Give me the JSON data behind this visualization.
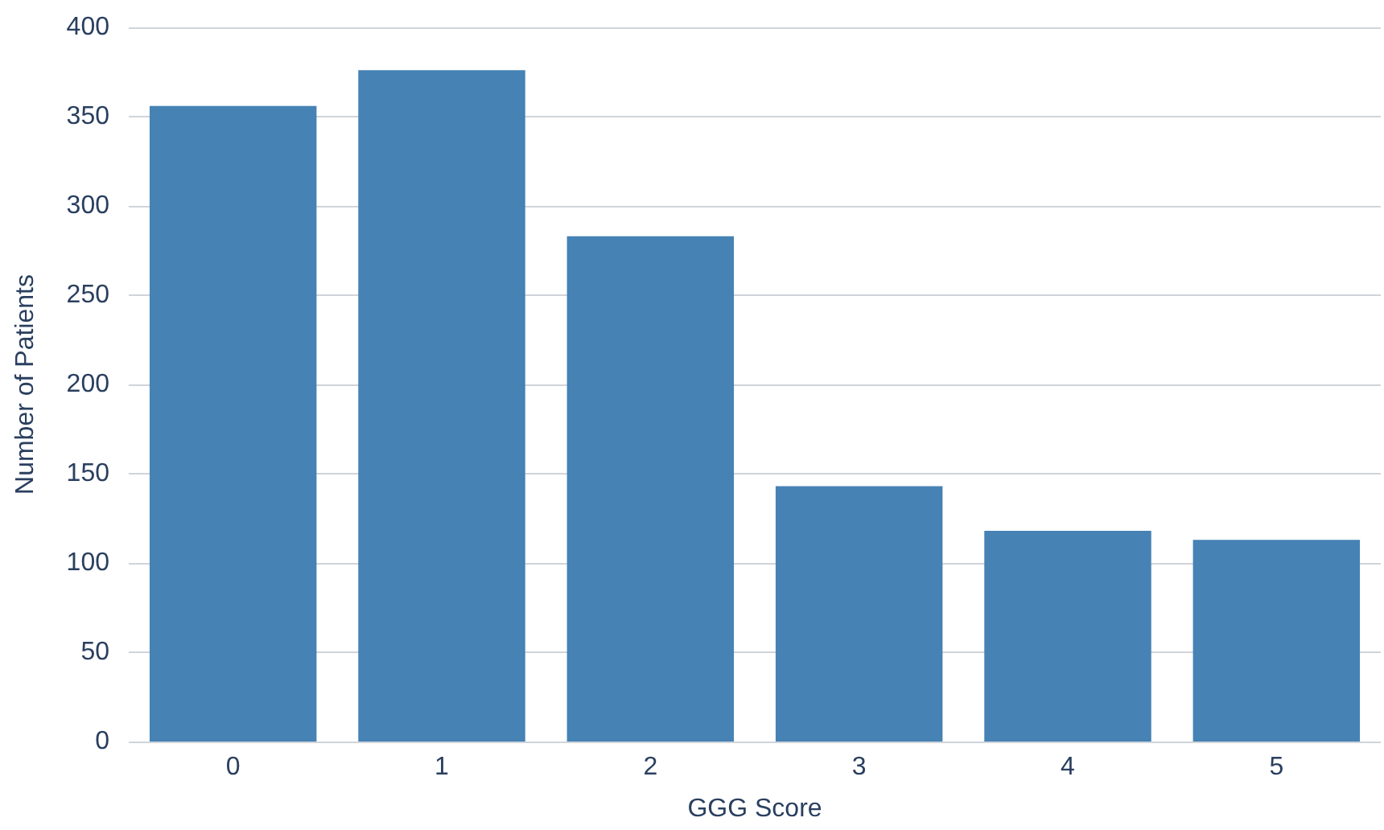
{
  "chart_data": {
    "type": "bar",
    "xlabel": "GGG Score",
    "ylabel": "Number of Patients",
    "categories": [
      "0",
      "1",
      "2",
      "3",
      "4",
      "5"
    ],
    "values": [
      356,
      376,
      283,
      143,
      118,
      113
    ],
    "color": "#4682b4",
    "ylim": [
      0,
      400
    ],
    "yticks": [
      0,
      50,
      100,
      150,
      200,
      250,
      300,
      350,
      400
    ],
    "grid": "y"
  }
}
